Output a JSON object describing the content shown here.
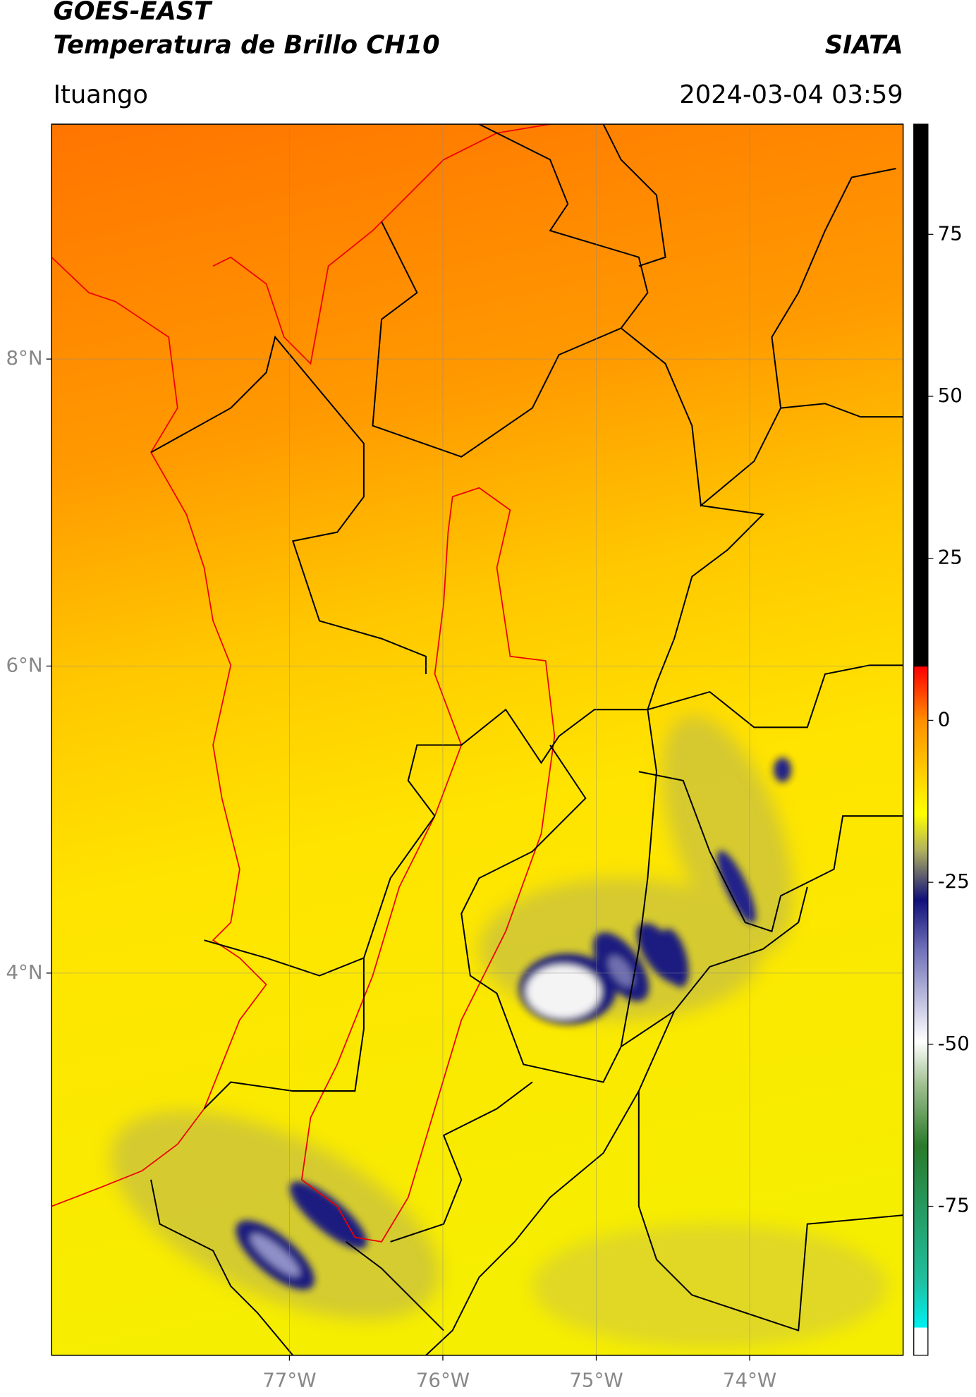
{
  "header": {
    "title": "GOES-EAST",
    "subtitle": "Temperatura de Brillo CH10",
    "source": "SIATA",
    "location": "Ituango",
    "datetime": "2024-03-04 03:59"
  },
  "map": {
    "latlim": [
      1.51,
      9.53
    ],
    "lonlim": [
      -78.55,
      -73.0
    ],
    "lat_ticks": [
      {
        "value": 8,
        "label": "8°N"
      },
      {
        "value": 6,
        "label": "6°N"
      },
      {
        "value": 4,
        "label": "4°N"
      }
    ],
    "lon_ticks": [
      {
        "value": -77,
        "label": "77°W"
      },
      {
        "value": -76,
        "label": "76°W"
      },
      {
        "value": -75,
        "label": "75°W"
      },
      {
        "value": -74,
        "label": "74°W"
      }
    ],
    "grid": true
  },
  "colorbar": {
    "lim": [
      -98,
      92
    ],
    "ticks": [
      75,
      50,
      25,
      0,
      -25,
      -50,
      -75
    ]
  }
}
